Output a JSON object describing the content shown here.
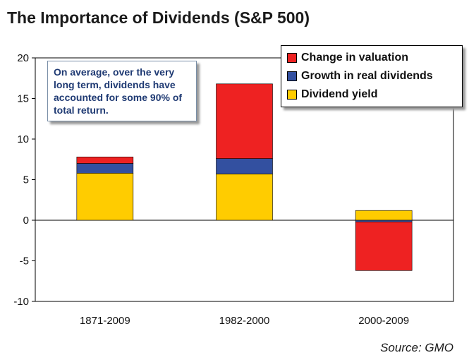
{
  "chart_data": {
    "type": "bar",
    "stacked": true,
    "title": "The Importance of Dividends (S&P 500)",
    "xlabel": "",
    "ylabel": "",
    "categories": [
      "1871-2009",
      "1982-2000",
      "2000-2009"
    ],
    "ylim": [
      -10,
      20
    ],
    "yticks": [
      20,
      15,
      10,
      5,
      0,
      -5,
      -10
    ],
    "series": [
      {
        "name": "Dividend yield",
        "color": "#ffcc00",
        "values": [
          5.8,
          5.7,
          1.2
        ]
      },
      {
        "name": "Growth in real dividends",
        "color": "#3350a0",
        "values": [
          1.2,
          1.9,
          -0.2
        ]
      },
      {
        "name": "Change in valuation",
        "color": "#ee2222",
        "values": [
          0.8,
          9.2,
          -6.0
        ]
      }
    ],
    "legend_order": [
      "Change in valuation",
      "Growth in real dividends",
      "Dividend yield"
    ],
    "legend_position": "top-right",
    "annotation": "On average, over the very long term, dividends have accounted for some 90% of total return.",
    "source": "Source: GMO"
  }
}
